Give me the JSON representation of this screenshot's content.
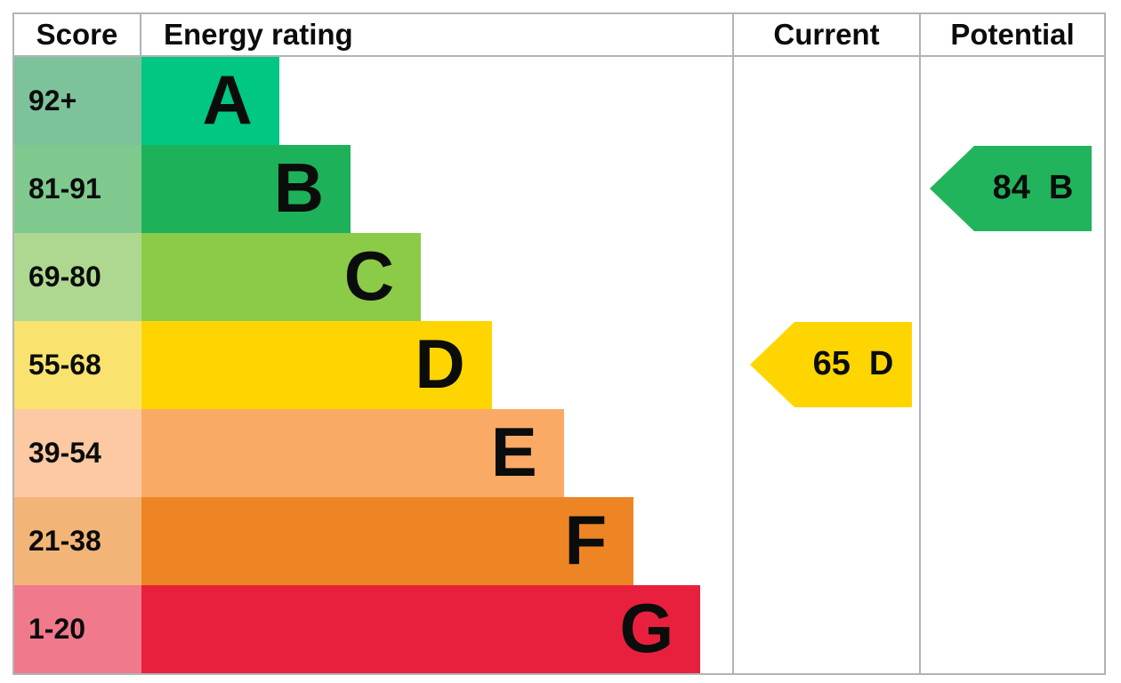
{
  "header": {
    "score": "Score",
    "energy_rating": "Energy rating",
    "current": "Current",
    "potential": "Potential"
  },
  "colors": {
    "border": "#b1b4b6",
    "background": "#ffffff",
    "text": "#0b0c0c"
  },
  "chart_data": {
    "type": "bar",
    "title": "Energy efficiency rating chart (EPC)",
    "categories": [
      "A",
      "B",
      "C",
      "D",
      "E",
      "F",
      "G"
    ],
    "bands": [
      {
        "letter": "A",
        "score_range": "92+",
        "bar_color": "#00c781",
        "score_cell_color": "#7cc39b",
        "bar_width_pct": 23.3
      },
      {
        "letter": "B",
        "score_range": "81-91",
        "bar_color": "#1db25a",
        "score_cell_color": "#7fc98f",
        "bar_width_pct": 35.4
      },
      {
        "letter": "C",
        "score_range": "69-80",
        "bar_color": "#8bcb47",
        "score_cell_color": "#aed890",
        "bar_width_pct": 47.3
      },
      {
        "letter": "D",
        "score_range": "55-68",
        "bar_color": "#ffd500",
        "score_cell_color": "#f9e36e",
        "bar_width_pct": 59.3
      },
      {
        "letter": "E",
        "score_range": "39-54",
        "bar_color": "#fbaa66",
        "score_cell_color": "#fcc9a2",
        "bar_width_pct": 71.5
      },
      {
        "letter": "F",
        "score_range": "21-38",
        "bar_color": "#ee8524",
        "score_cell_color": "#f3b577",
        "bar_width_pct": 83.3
      },
      {
        "letter": "G",
        "score_range": "1-20",
        "bar_color": "#e9203d",
        "score_cell_color": "#f1798c",
        "bar_width_pct": 94.6
      }
    ],
    "current": {
      "value": "65",
      "band": "D",
      "color": "#ffd500",
      "band_index": 3
    },
    "potential": {
      "value": "84",
      "band": "B",
      "color": "#22b45c",
      "band_index": 1
    }
  }
}
